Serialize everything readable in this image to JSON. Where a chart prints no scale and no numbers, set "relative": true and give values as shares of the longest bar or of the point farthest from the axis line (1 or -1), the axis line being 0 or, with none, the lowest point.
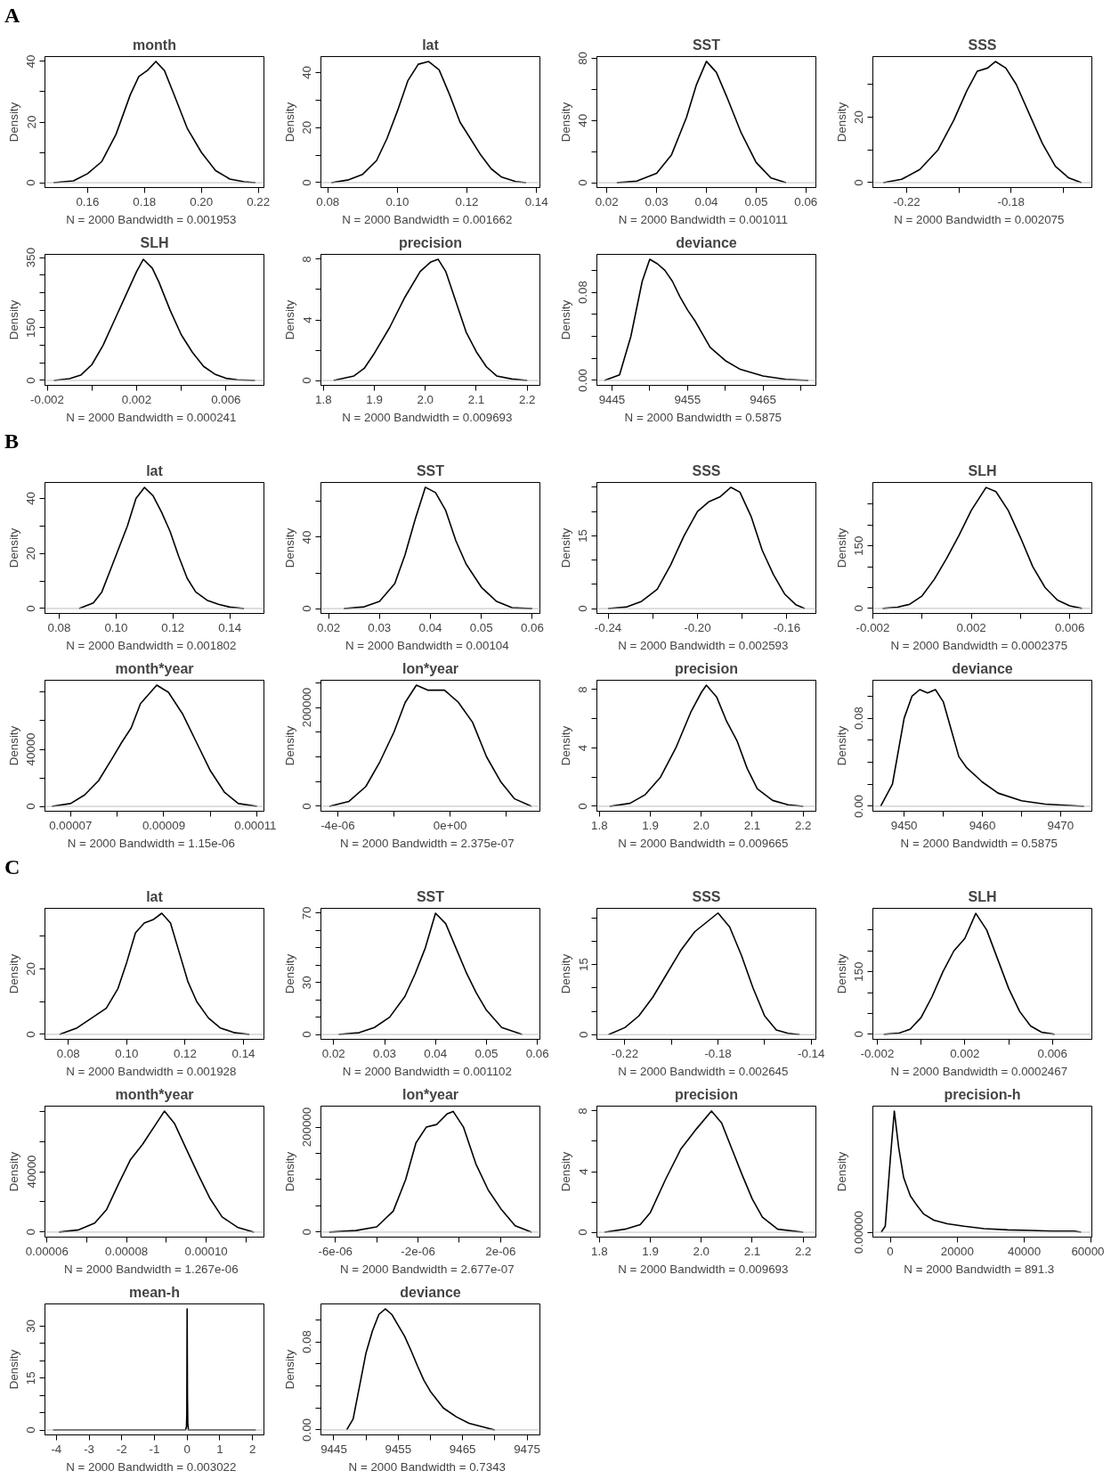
{
  "chart_data": [
    {
      "type": "line",
      "title": "month",
      "ylabel": "Density",
      "xlabel": "N = 2000   Bandwidth = 0.001953",
      "annotations": [
        "A"
      ],
      "ref_lines": [
        {
          "axis": "y",
          "value": 0,
          "color": "#bebebe"
        }
      ],
      "x": [
        0.148,
        0.155,
        0.16,
        0.165,
        0.17,
        0.175,
        0.178,
        0.181,
        0.184,
        0.187,
        0.19,
        0.195,
        0.2,
        0.205,
        0.21,
        0.215,
        0.219
      ],
      "values": [
        0,
        0.6,
        3,
        7,
        16,
        29,
        35,
        37,
        40,
        37,
        30,
        18,
        10,
        4,
        1.2,
        0.3,
        0
      ],
      "xlim": [
        0.145,
        0.222
      ],
      "xticks": [
        0.16,
        0.18,
        {
          "value": 0.2,
          "label": "0.20"
        },
        0.22
      ],
      "ylim": [
        -1.6,
        41.6
      ],
      "yticks": [
        0,
        {
          "value": 10,
          "label": null
        },
        20,
        {
          "value": 30,
          "label": null
        },
        40
      ]
    },
    {
      "type": "line",
      "title": "lat",
      "ylabel": "Density",
      "xlabel": "N = 2000   Bandwidth = 0.001662",
      "ref_lines": [
        {
          "axis": "y",
          "value": 0,
          "color": "#bebebe"
        }
      ],
      "x": [
        0.081,
        0.086,
        0.09,
        0.094,
        0.097,
        0.1,
        0.103,
        0.106,
        0.109,
        0.112,
        0.115,
        0.118,
        0.121,
        0.124,
        0.127,
        0.13,
        0.134,
        0.137
      ],
      "values": [
        0,
        1,
        3,
        8,
        16,
        26,
        37,
        43,
        44,
        41,
        32,
        22,
        16,
        10,
        5,
        2,
        0.4,
        0
      ],
      "xlim": [
        0.078,
        0.141
      ],
      "xticks": [
        0.08,
        {
          "value": 0.1,
          "label": "0.10"
        },
        0.12,
        0.14
      ],
      "ylim": [
        -1.8,
        45.8
      ],
      "yticks": [
        0,
        {
          "value": 10,
          "label": null
        },
        20,
        {
          "value": 30,
          "label": null
        },
        40
      ]
    },
    {
      "type": "line",
      "title": "SST",
      "ylabel": "Density",
      "xlabel": "N = 2000   Bandwidth = 0.001011",
      "ref_lines": [
        {
          "axis": "y",
          "value": 0,
          "color": "#bebebe"
        }
      ],
      "x": [
        0.022,
        0.026,
        0.03,
        0.033,
        0.036,
        0.038,
        0.04,
        0.042,
        0.044,
        0.047,
        0.05,
        0.053,
        0.056
      ],
      "values": [
        0,
        1,
        6,
        18,
        42,
        63,
        78,
        71,
        56,
        32,
        13,
        3,
        0
      ],
      "xlim": [
        0.018,
        0.062
      ],
      "xticks": [
        0.02,
        0.03,
        0.04,
        0.05,
        0.06
      ],
      "ylim": [
        -3.1,
        81.1
      ],
      "yticks": [
        0,
        {
          "value": 20,
          "label": null
        },
        40,
        {
          "value": 60,
          "label": null
        },
        80
      ]
    },
    {
      "type": "line",
      "title": "SSS",
      "ylabel": "Density",
      "xlabel": "N = 2000   Bandwidth = 0.002075",
      "ref_lines": [
        {
          "axis": "y",
          "value": 0,
          "color": "#bebebe"
        }
      ],
      "x": [
        -0.229,
        -0.222,
        -0.215,
        -0.208,
        -0.202,
        -0.197,
        -0.193,
        -0.189,
        -0.186,
        -0.182,
        -0.178,
        -0.173,
        -0.168,
        -0.163,
        -0.158,
        -0.153
      ],
      "values": [
        0,
        1,
        4,
        10,
        19,
        28,
        34,
        35,
        37,
        35,
        30,
        21,
        12,
        5,
        1.5,
        0
      ],
      "xlim": [
        -0.233,
        -0.149
      ],
      "xticks": [
        -0.22,
        {
          "value": -0.2,
          "label": null
        },
        -0.18,
        {
          "value": -0.16,
          "label": null
        }
      ],
      "ylim": [
        -1.5,
        38.5
      ],
      "yticks": [
        0,
        {
          "value": 10,
          "label": null
        },
        20,
        {
          "value": 30,
          "label": null
        }
      ]
    },
    {
      "type": "line",
      "title": "SLH",
      "ylabel": "Density",
      "xlabel": "N = 2000   Bandwidth = 0.000241",
      "ref_lines": [
        {
          "axis": "y",
          "value": 0,
          "color": "#bebebe"
        }
      ],
      "x": [
        -0.0017,
        -0.001,
        -0.0005,
        0,
        0.0005,
        0.001,
        0.0015,
        0.002,
        0.0023,
        0.0027,
        0.003,
        0.0035,
        0.004,
        0.0045,
        0.005,
        0.0055,
        0.006,
        0.0065,
        0.0073
      ],
      "values": [
        0,
        5,
        15,
        45,
        100,
        170,
        240,
        310,
        345,
        320,
        280,
        200,
        130,
        80,
        40,
        18,
        6,
        2,
        0
      ],
      "xlim": [
        -0.0021,
        0.0077
      ],
      "xticks": [
        -0.002,
        {
          "value": 0,
          "label": null
        },
        0.002,
        {
          "value": 0.004,
          "label": null
        },
        0.006
      ],
      "ylim": [
        -14,
        359
      ],
      "yticks": [
        0,
        {
          "value": 50,
          "label": null
        },
        {
          "value": 100,
          "label": null
        },
        150,
        {
          "value": 200,
          "label": null
        },
        {
          "value": 250,
          "label": null
        },
        {
          "value": 300,
          "label": null
        },
        350
      ]
    },
    {
      "type": "line",
      "title": "precision",
      "ylabel": "Density",
      "xlabel": "N = 2000   Bandwidth = 0.009693",
      "ref_lines": [
        {
          "axis": "y",
          "value": 0,
          "color": "#bebebe"
        }
      ],
      "x": [
        1.82,
        1.86,
        1.88,
        1.9,
        1.93,
        1.96,
        1.99,
        2.01,
        2.025,
        2.04,
        2.06,
        2.08,
        2.1,
        2.12,
        2.14,
        2.17,
        2.2
      ],
      "values": [
        0,
        0.3,
        0.8,
        1.8,
        3.5,
        5.5,
        7.2,
        7.8,
        8.0,
        7.2,
        5.2,
        3.2,
        1.9,
        0.9,
        0.3,
        0.1,
        0
      ],
      "xlim": [
        1.795,
        2.225
      ],
      "xticks": [
        1.8,
        1.9,
        {
          "value": 2,
          "label": "2.0"
        },
        2.1,
        2.2
      ],
      "ylim": [
        -0.32,
        8.32
      ],
      "yticks": [
        0,
        {
          "value": 2,
          "label": null
        },
        4,
        {
          "value": 6,
          "label": null
        },
        8
      ]
    },
    {
      "type": "line",
      "title": "deviance",
      "ylabel": "Density",
      "xlabel": "N = 2000   Bandwidth = 0.5875",
      "ref_lines": [
        {
          "axis": "y",
          "value": 0,
          "color": "#bebebe"
        }
      ],
      "x": [
        9444,
        9446,
        9447.5,
        9449,
        9450,
        9451,
        9452,
        9453,
        9454,
        9455,
        9456,
        9457,
        9458,
        9460,
        9462,
        9465,
        9468,
        9471
      ],
      "values": [
        0,
        0.005,
        0.04,
        0.09,
        0.11,
        0.106,
        0.1,
        0.09,
        0.076,
        0.064,
        0.054,
        0.042,
        0.03,
        0.018,
        0.01,
        0.004,
        0.001,
        0
      ],
      "xlim": [
        9443,
        9472
      ],
      "xticks": [
        9445,
        {
          "value": 9450,
          "label": null
        },
        9455,
        {
          "value": 9460,
          "label": null
        },
        9465,
        {
          "value": 9470,
          "label": null
        }
      ],
      "ylim": [
        -0.0045,
        0.1145
      ],
      "yticks": [
        {
          "value": 0,
          "label": "0.00"
        },
        {
          "value": 0.02,
          "label": null
        },
        {
          "value": 0.04,
          "label": null
        },
        {
          "value": 0.06,
          "label": null
        },
        0.08,
        {
          "value": 0.1,
          "label": null
        }
      ]
    },
    {
      "type": "line",
      "title": "lat",
      "ylabel": "Density",
      "xlabel": "N = 2000   Bandwidth = 0.001802",
      "annotations": [
        "B"
      ],
      "ref_lines": [
        {
          "axis": "y",
          "value": 0,
          "color": "#bebebe"
        }
      ],
      "x": [
        0.087,
        0.092,
        0.095,
        0.098,
        0.101,
        0.104,
        0.107,
        0.11,
        0.113,
        0.116,
        0.119,
        0.122,
        0.125,
        0.128,
        0.132,
        0.136,
        0.14,
        0.145
      ],
      "values": [
        0,
        2,
        6,
        14,
        22,
        30,
        40,
        44,
        41,
        35,
        28,
        19,
        11,
        6,
        3,
        1.5,
        0.5,
        0
      ],
      "xlim": [
        0.075,
        0.152
      ],
      "xticks": [
        0.08,
        {
          "value": 0.1,
          "label": "0.10"
        },
        0.12,
        0.14
      ],
      "ylim": [
        -1.8,
        45.8
      ],
      "yticks": [
        0,
        {
          "value": 10,
          "label": null
        },
        20,
        {
          "value": 30,
          "label": null
        },
        40
      ]
    },
    {
      "type": "line",
      "title": "SST",
      "ylabel": "Density",
      "xlabel": "N = 2000   Bandwidth = 0.00104",
      "ref_lines": [
        {
          "axis": "y",
          "value": 0,
          "color": "#bebebe"
        }
      ],
      "x": [
        0.023,
        0.027,
        0.03,
        0.033,
        0.035,
        0.037,
        0.039,
        0.041,
        0.043,
        0.045,
        0.047,
        0.05,
        0.053,
        0.056,
        0.06
      ],
      "values": [
        0,
        1,
        4,
        14,
        30,
        50,
        68,
        65,
        55,
        38,
        25,
        12,
        4,
        0.5,
        0
      ],
      "xlim": [
        0.0185,
        0.0615
      ],
      "xticks": [
        0.02,
        0.03,
        0.04,
        0.05,
        0.06
      ],
      "ylim": [
        -2.7,
        70.7
      ],
      "yticks": [
        0,
        {
          "value": 20,
          "label": null
        },
        40,
        {
          "value": 60,
          "label": null
        }
      ]
    },
    {
      "type": "line",
      "title": "SSS",
      "ylabel": "Density",
      "xlabel": "N = 2000   Bandwidth = 0.002593",
      "ref_lines": [
        {
          "axis": "y",
          "value": 0,
          "color": "#bebebe"
        }
      ],
      "x": [
        -0.24,
        -0.232,
        -0.225,
        -0.218,
        -0.212,
        -0.206,
        -0.2,
        -0.195,
        -0.19,
        -0.185,
        -0.181,
        -0.176,
        -0.171,
        -0.166,
        -0.161,
        -0.156,
        -0.152
      ],
      "values": [
        0,
        0.3,
        1.5,
        4,
        9,
        15,
        20,
        22,
        23,
        25,
        24,
        19,
        12,
        7,
        3,
        0.8,
        0
      ],
      "xlim": [
        -0.245,
        -0.147
      ],
      "xticks": [
        -0.24,
        {
          "value": -0.22,
          "label": null
        },
        {
          "value": -0.2,
          "label": "-0.20"
        },
        {
          "value": -0.18,
          "label": null
        },
        -0.16
      ],
      "ylim": [
        -1,
        26
      ],
      "yticks": [
        0,
        {
          "value": 5,
          "label": null
        },
        {
          "value": 10,
          "label": null
        },
        15,
        {
          "value": 20,
          "label": null
        },
        {
          "value": 25,
          "label": null
        }
      ]
    },
    {
      "type": "line",
      "title": "SLH",
      "ylabel": "Density",
      "xlabel": "N = 2000   Bandwidth = 0.0002375",
      "ref_lines": [
        {
          "axis": "y",
          "value": 0,
          "color": "#bebebe"
        }
      ],
      "x": [
        -0.0016,
        -0.001,
        -0.0005,
        0,
        0.0005,
        0.001,
        0.0015,
        0.002,
        0.0026,
        0.003,
        0.0035,
        0.004,
        0.0045,
        0.005,
        0.0055,
        0.006,
        0.0065
      ],
      "values": [
        0,
        3,
        10,
        30,
        70,
        120,
        175,
        235,
        290,
        280,
        235,
        170,
        100,
        50,
        20,
        6,
        0
      ],
      "xlim": [
        -0.002,
        0.0069
      ],
      "xticks": [
        -0.002,
        {
          "value": 0,
          "label": null
        },
        0.002,
        {
          "value": 0.004,
          "label": null
        },
        0.006
      ],
      "ylim": [
        -12,
        302
      ],
      "yticks": [
        0,
        {
          "value": 50,
          "label": null
        },
        {
          "value": 100,
          "label": null
        },
        150,
        {
          "value": 200,
          "label": null
        },
        {
          "value": 250,
          "label": null
        }
      ]
    },
    {
      "type": "line",
      "title": "month*year",
      "ylabel": "Density",
      "xlabel": "N = 2000   Bandwidth = 1.15e-06",
      "ref_lines": [
        {
          "axis": "y",
          "value": 0,
          "color": "#bebebe"
        }
      ],
      "x": [
        6.6e-05,
        7e-05,
        7.3e-05,
        7.6e-05,
        7.9e-05,
        8.1e-05,
        8.3e-05,
        8.5e-05,
        8.85e-05,
        9.1e-05,
        9.4e-05,
        9.7e-05,
        0.0001,
        0.000103,
        0.000106,
        0.00011
      ],
      "values": [
        0,
        2000,
        8000,
        18000,
        34000,
        45000,
        55000,
        72000,
        85000,
        80000,
        65000,
        45000,
        25000,
        10000,
        2000,
        0
      ],
      "xlim": [
        6.45e-05,
        0.0001115
      ],
      "xticks": [
        {
          "value": 7e-05,
          "label": "0.00007"
        },
        {
          "value": 8e-05,
          "label": null
        },
        {
          "value": 9e-05,
          "label": "0.00009"
        },
        {
          "value": 0.0001,
          "label": null
        },
        {
          "value": 0.00011,
          "label": "0.00011"
        }
      ],
      "ylim": [
        -3400,
        88400
      ],
      "yticks": [
        0,
        {
          "value": 20000,
          "label": null
        },
        40000,
        {
          "value": 60000,
          "label": null
        },
        {
          "value": 80000,
          "label": null
        }
      ]
    },
    {
      "type": "line",
      "title": "lon*year",
      "ylabel": "Density",
      "xlabel": "N = 2000   Bandwidth = 2.375e-07",
      "ref_lines": [
        {
          "axis": "y",
          "value": 0,
          "color": "#bebebe"
        }
      ],
      "x": [
        -4.3e-06,
        -3.6e-06,
        -3e-06,
        -2.5e-06,
        -2e-06,
        -1.6e-06,
        -1.2e-06,
        -8e-07,
        -2e-07,
        3e-07,
        8e-07,
        1.3e-06,
        1.8e-06,
        2.3e-06,
        2.9e-06
      ],
      "values": [
        0,
        10000,
        40000,
        90000,
        150000,
        210000,
        245000,
        235000,
        235000,
        210000,
        170000,
        100000,
        50000,
        15000,
        0
      ],
      "xlim": [
        -4.6e-06,
        3.2e-06
      ],
      "xticks": [
        {
          "value": -4e-06,
          "label": "-4e-06"
        },
        {
          "value": -2e-06,
          "label": null
        },
        {
          "value": 0,
          "label": "0e+00"
        },
        {
          "value": 2e-06,
          "label": null
        }
      ],
      "ylim": [
        -10000,
        255000
      ],
      "yticks": [
        0,
        {
          "value": 50000,
          "label": null
        },
        {
          "value": 100000,
          "label": null
        },
        {
          "value": 150000,
          "label": null
        },
        200000,
        {
          "value": 250000,
          "label": null
        }
      ]
    },
    {
      "type": "line",
      "title": "precision",
      "ylabel": "Density",
      "xlabel": "N = 2000   Bandwidth = 0.009665",
      "ref_lines": [
        {
          "axis": "y",
          "value": 0,
          "color": "#bebebe"
        }
      ],
      "x": [
        1.82,
        1.86,
        1.89,
        1.92,
        1.95,
        1.98,
        2.0,
        2.01,
        2.03,
        2.05,
        2.07,
        2.09,
        2.11,
        2.14,
        2.17,
        2.2
      ],
      "values": [
        0,
        0.2,
        0.8,
        2,
        4,
        6.5,
        7.8,
        8.3,
        7.5,
        5.8,
        4.5,
        2.6,
        1.2,
        0.4,
        0.1,
        0
      ],
      "xlim": [
        1.795,
        2.225
      ],
      "xticks": [
        1.8,
        1.9,
        {
          "value": 2,
          "label": "2.0"
        },
        2.1,
        2.2
      ],
      "ylim": [
        -0.34,
        8.64
      ],
      "yticks": [
        0,
        {
          "value": 2,
          "label": null
        },
        4,
        {
          "value": 6,
          "label": null
        },
        8
      ]
    },
    {
      "type": "line",
      "title": "deviance",
      "ylabel": "Density",
      "xlabel": "N = 2000   Bandwidth = 0.5875",
      "ref_lines": [
        {
          "axis": "y",
          "value": 0,
          "color": "#bebebe"
        }
      ],
      "x": [
        9447,
        9448.5,
        9450,
        9451,
        9452,
        9453,
        9454,
        9455,
        9456,
        9457,
        9458,
        9460,
        9462,
        9465,
        9468,
        9473
      ],
      "values": [
        0,
        0.02,
        0.08,
        0.1,
        0.106,
        0.103,
        0.106,
        0.095,
        0.07,
        0.045,
        0.035,
        0.022,
        0.012,
        0.005,
        0.002,
        0
      ],
      "xlim": [
        9446,
        9474
      ],
      "xticks": [
        9450,
        {
          "value": 9455,
          "label": null
        },
        9460,
        {
          "value": 9465,
          "label": null
        },
        9470
      ],
      "ylim": [
        -0.0045,
        0.1145
      ],
      "yticks": [
        {
          "value": 0,
          "label": "0.00"
        },
        {
          "value": 0.02,
          "label": null
        },
        {
          "value": 0.04,
          "label": null
        },
        {
          "value": 0.06,
          "label": null
        },
        0.08,
        {
          "value": 0.1,
          "label": null
        }
      ]
    },
    {
      "type": "line",
      "title": "lat",
      "ylabel": "Density",
      "xlabel": "N = 2000   Bandwidth = 0.001928",
      "annotations": [
        "C"
      ],
      "ref_lines": [
        {
          "axis": "y",
          "value": 0,
          "color": "#bebebe"
        }
      ],
      "x": [
        0.077,
        0.083,
        0.088,
        0.093,
        0.097,
        0.1,
        0.103,
        0.106,
        0.109,
        0.112,
        0.115,
        0.118,
        0.121,
        0.124,
        0.128,
        0.132,
        0.137,
        0.142
      ],
      "values": [
        0,
        2,
        5,
        8,
        14,
        22,
        31,
        34,
        35,
        37,
        34,
        25,
        16,
        10,
        5,
        2,
        0.5,
        0
      ],
      "xlim": [
        0.072,
        0.147
      ],
      "xticks": [
        0.08,
        {
          "value": 0.1,
          "label": "0.10"
        },
        0.12,
        0.14
      ],
      "ylim": [
        -1.5,
        38.5
      ],
      "yticks": [
        0,
        {
          "value": 10,
          "label": null
        },
        20,
        {
          "value": 30,
          "label": null
        }
      ]
    },
    {
      "type": "line",
      "title": "SST",
      "ylabel": "Density",
      "xlabel": "N = 2000   Bandwidth = 0.001102",
      "ref_lines": [
        {
          "axis": "y",
          "value": 0,
          "color": "#bebebe"
        }
      ],
      "x": [
        0.021,
        0.025,
        0.028,
        0.031,
        0.034,
        0.036,
        0.038,
        0.04,
        0.042,
        0.044,
        0.046,
        0.048,
        0.05,
        0.053,
        0.057
      ],
      "values": [
        0,
        1,
        4,
        10,
        22,
        35,
        50,
        70,
        64,
        50,
        36,
        24,
        14,
        4,
        0
      ],
      "xlim": [
        0.0175,
        0.0605
      ],
      "xticks": [
        0.02,
        0.03,
        0.04,
        0.05,
        0.06
      ],
      "ylim": [
        -2.8,
        72.8
      ],
      "yticks": [
        0,
        {
          "value": 10,
          "label": null
        },
        {
          "value": 20,
          "label": null
        },
        30,
        {
          "value": 40,
          "label": null
        },
        {
          "value": 50,
          "label": null
        },
        {
          "value": 60,
          "label": null
        },
        70
      ]
    },
    {
      "type": "line",
      "title": "SSS",
      "ylabel": "Density",
      "xlabel": "N = 2000   Bandwidth = 0.002645",
      "ref_lines": [
        {
          "axis": "y",
          "value": 0,
          "color": "#bebebe"
        }
      ],
      "x": [
        -0.227,
        -0.22,
        -0.214,
        -0.208,
        -0.202,
        -0.196,
        -0.19,
        -0.185,
        -0.18,
        -0.175,
        -0.17,
        -0.165,
        -0.16,
        -0.155,
        -0.15,
        -0.145
      ],
      "values": [
        0,
        1.5,
        4,
        8,
        13,
        18,
        22,
        24,
        26,
        23,
        17,
        10,
        4,
        1,
        0.3,
        0
      ],
      "xlim": [
        -0.232,
        -0.138
      ],
      "xticks": [
        -0.22,
        {
          "value": -0.2,
          "label": null
        },
        -0.18,
        {
          "value": -0.16,
          "label": null
        },
        -0.14
      ],
      "ylim": [
        -1,
        27
      ],
      "yticks": [
        0,
        {
          "value": 5,
          "label": null
        },
        {
          "value": 10,
          "label": null
        },
        15,
        {
          "value": 20,
          "label": null
        },
        {
          "value": 25,
          "label": null
        }
      ]
    },
    {
      "type": "line",
      "title": "SLH",
      "ylabel": "Density",
      "xlabel": "N = 2000   Bandwidth = 0.0002467",
      "ref_lines": [
        {
          "axis": "y",
          "value": 0,
          "color": "#bebebe"
        }
      ],
      "x": [
        -0.0017,
        -0.001,
        -0.0005,
        0,
        0.0005,
        0.001,
        0.0015,
        0.002,
        0.0025,
        0.003,
        0.0035,
        0.004,
        0.0045,
        0.005,
        0.0055,
        0.0061
      ],
      "values": [
        0,
        3,
        12,
        40,
        90,
        150,
        200,
        230,
        290,
        250,
        180,
        110,
        55,
        20,
        5,
        0
      ],
      "xlim": [
        -0.0022,
        0.0078
      ],
      "xticks": [
        -0.002,
        {
          "value": 0,
          "label": null
        },
        0.002,
        {
          "value": 0.004,
          "label": null
        },
        0.006
      ],
      "ylim": [
        -12,
        302
      ],
      "yticks": [
        0,
        {
          "value": 50,
          "label": null
        },
        {
          "value": 100,
          "label": null
        },
        150,
        {
          "value": 200,
          "label": null
        },
        {
          "value": 250,
          "label": null
        }
      ]
    },
    {
      "type": "line",
      "title": "month*year",
      "ylabel": "Density",
      "xlabel": "N = 2000   Bandwidth = 1.267e-06",
      "ref_lines": [
        {
          "axis": "y",
          "value": 0,
          "color": "#bebebe"
        }
      ],
      "x": [
        6.3e-05,
        6.8e-05,
        7.2e-05,
        7.5e-05,
        7.8e-05,
        8.1e-05,
        8.4e-05,
        8.7e-05,
        8.95e-05,
        9.2e-05,
        9.5e-05,
        9.8e-05,
        0.000101,
        0.000104,
        0.000108,
        0.000112
      ],
      "values": [
        0,
        1500,
        6000,
        15000,
        32000,
        48000,
        58000,
        70000,
        80000,
        72000,
        55000,
        38000,
        22000,
        10000,
        3000,
        0
      ],
      "xlim": [
        5.95e-05,
        0.0001145
      ],
      "xticks": [
        {
          "value": 6e-05,
          "label": "0.00006"
        },
        {
          "value": 7e-05,
          "label": null
        },
        {
          "value": 8e-05,
          "label": "0.00008"
        },
        {
          "value": 9e-05,
          "label": null
        },
        {
          "value": 0.0001,
          "label": "0.00010"
        },
        {
          "value": 0.00011,
          "label": null
        }
      ],
      "ylim": [
        -3300,
        83300
      ],
      "yticks": [
        0,
        {
          "value": 20000,
          "label": null
        },
        40000,
        {
          "value": 60000,
          "label": null
        },
        {
          "value": 80000,
          "label": null
        }
      ]
    },
    {
      "type": "line",
      "title": "lon*year",
      "ylabel": "Density",
      "xlabel": "N = 2000   Bandwidth = 2.677e-07",
      "ref_lines": [
        {
          "axis": "y",
          "value": 0,
          "color": "#bebebe"
        }
      ],
      "x": [
        -6.3e-06,
        -5e-06,
        -4e-06,
        -3.2e-06,
        -2.6e-06,
        -2.1e-06,
        -1.6e-06,
        -1.1e-06,
        -6e-07,
        -3e-07,
        2e-07,
        8e-07,
        1.4e-06,
        2e-06,
        2.7e-06,
        3.5e-06
      ],
      "values": [
        0,
        3000,
        10000,
        40000,
        100000,
        170000,
        200000,
        205000,
        225000,
        230000,
        200000,
        130000,
        80000,
        45000,
        12000,
        0
      ],
      "xlim": [
        -6.7e-06,
        3.9e-06
      ],
      "xticks": [
        {
          "value": -6e-06,
          "label": "-6e-06"
        },
        {
          "value": -4e-06,
          "label": null
        },
        {
          "value": -2e-06,
          "label": "-2e-06"
        },
        {
          "value": 0,
          "label": null
        },
        {
          "value": 2e-06,
          "label": "2e-06"
        }
      ],
      "ylim": [
        -9500,
        240000
      ],
      "yticks": [
        0,
        {
          "value": 50000,
          "label": null
        },
        {
          "value": 100000,
          "label": null
        },
        {
          "value": 150000,
          "label": null
        },
        200000
      ]
    },
    {
      "type": "line",
      "title": "precision",
      "ylabel": "Density",
      "xlabel": "N = 2000   Bandwidth = 0.009693",
      "ref_lines": [
        {
          "axis": "y",
          "value": 0,
          "color": "#bebebe"
        }
      ],
      "x": [
        1.81,
        1.85,
        1.88,
        1.9,
        1.93,
        1.96,
        1.99,
        2.02,
        2.04,
        2.06,
        2.08,
        2.1,
        2.12,
        2.15,
        2.2
      ],
      "values": [
        0,
        0.2,
        0.5,
        1.3,
        3.5,
        5.5,
        6.8,
        8,
        7.2,
        5.5,
        3.8,
        2.2,
        1.0,
        0.2,
        0
      ],
      "xlim": [
        1.795,
        2.225
      ],
      "xticks": [
        1.8,
        1.9,
        {
          "value": 2,
          "label": "2.0"
        },
        2.1,
        2.2
      ],
      "ylim": [
        -0.32,
        8.32
      ],
      "yticks": [
        0,
        {
          "value": 2,
          "label": null
        },
        4,
        {
          "value": 6,
          "label": null
        },
        8
      ]
    },
    {
      "type": "line",
      "title": "precision-h",
      "ylabel": "Density",
      "xlabel": "N = 2000   Bandwidth = 891.3",
      "relative": true,
      "annotations": [
        "0.00000"
      ],
      "ref_lines": [
        {
          "axis": "y",
          "value": 0,
          "color": "#bebebe"
        }
      ],
      "x": [
        -2700,
        -1500,
        0,
        1200,
        2500,
        4000,
        6000,
        8000,
        10000,
        13000,
        17000,
        22000,
        28000,
        35000,
        42000,
        48000,
        52000,
        55000,
        57000
      ],
      "values": [
        0,
        0.05,
        0.6,
        1,
        0.7,
        0.45,
        0.3,
        0.22,
        0.15,
        0.1,
        0.07,
        0.05,
        0.03,
        0.02,
        0.015,
        0.01,
        0.01,
        0.01,
        0
      ],
      "xlim": [
        -5200,
        60200
      ],
      "xticks": [
        0,
        20000,
        40000,
        60000
      ]
    },
    {
      "type": "line",
      "title": "mean-h",
      "ylabel": "Density",
      "xlabel": "N = 2000   Bandwidth = 0.003022",
      "ref_lines": [
        {
          "axis": "y",
          "value": 0,
          "color": "#bebebe"
        }
      ],
      "x": [
        -4.1,
        -0.05,
        -0.02,
        -0.01,
        0,
        0.01,
        0.02,
        0.04,
        2.1
      ],
      "values": [
        0,
        0,
        1,
        5,
        35,
        10,
        2,
        0,
        0
      ],
      "xlim": [
        -4.35,
        2.35
      ],
      "xticks": [
        -4,
        -3,
        -2,
        -1,
        0,
        1,
        2
      ],
      "ylim": [
        -1.4,
        36.4
      ],
      "yticks": [
        0,
        {
          "value": 5,
          "label": null
        },
        {
          "value": 10,
          "label": null
        },
        15,
        {
          "value": 20,
          "label": null
        },
        {
          "value": 25,
          "label": null
        },
        30
      ]
    },
    {
      "type": "line",
      "title": "deviance",
      "ylabel": "Density",
      "xlabel": "N = 2000   Bandwidth = 0.7343",
      "ref_lines": [
        {
          "axis": "y",
          "value": 0,
          "color": "#bebebe"
        }
      ],
      "x": [
        9447,
        9448,
        9449,
        9450,
        9451,
        9452,
        9453,
        9454,
        9455,
        9456,
        9457,
        9458,
        9459,
        9460,
        9462,
        9464,
        9466,
        9470
      ],
      "values": [
        0,
        0.01,
        0.04,
        0.07,
        0.09,
        0.105,
        0.11,
        0.105,
        0.095,
        0.085,
        0.072,
        0.058,
        0.045,
        0.035,
        0.02,
        0.012,
        0.006,
        0
      ],
      "xlim": [
        9443,
        9477
      ],
      "xticks": [
        9445,
        {
          "value": 9450,
          "label": null
        },
        9455,
        {
          "value": 9460,
          "label": null
        },
        9465,
        {
          "value": 9470,
          "label": null
        },
        9475
      ],
      "ylim": [
        -0.0045,
        0.1145
      ],
      "yticks": [
        {
          "value": 0,
          "label": "0.00"
        },
        {
          "value": 0.02,
          "label": null
        },
        {
          "value": 0.04,
          "label": null
        },
        {
          "value": 0.06,
          "label": null
        },
        0.08,
        {
          "value": 0.1,
          "label": null
        }
      ]
    }
  ]
}
